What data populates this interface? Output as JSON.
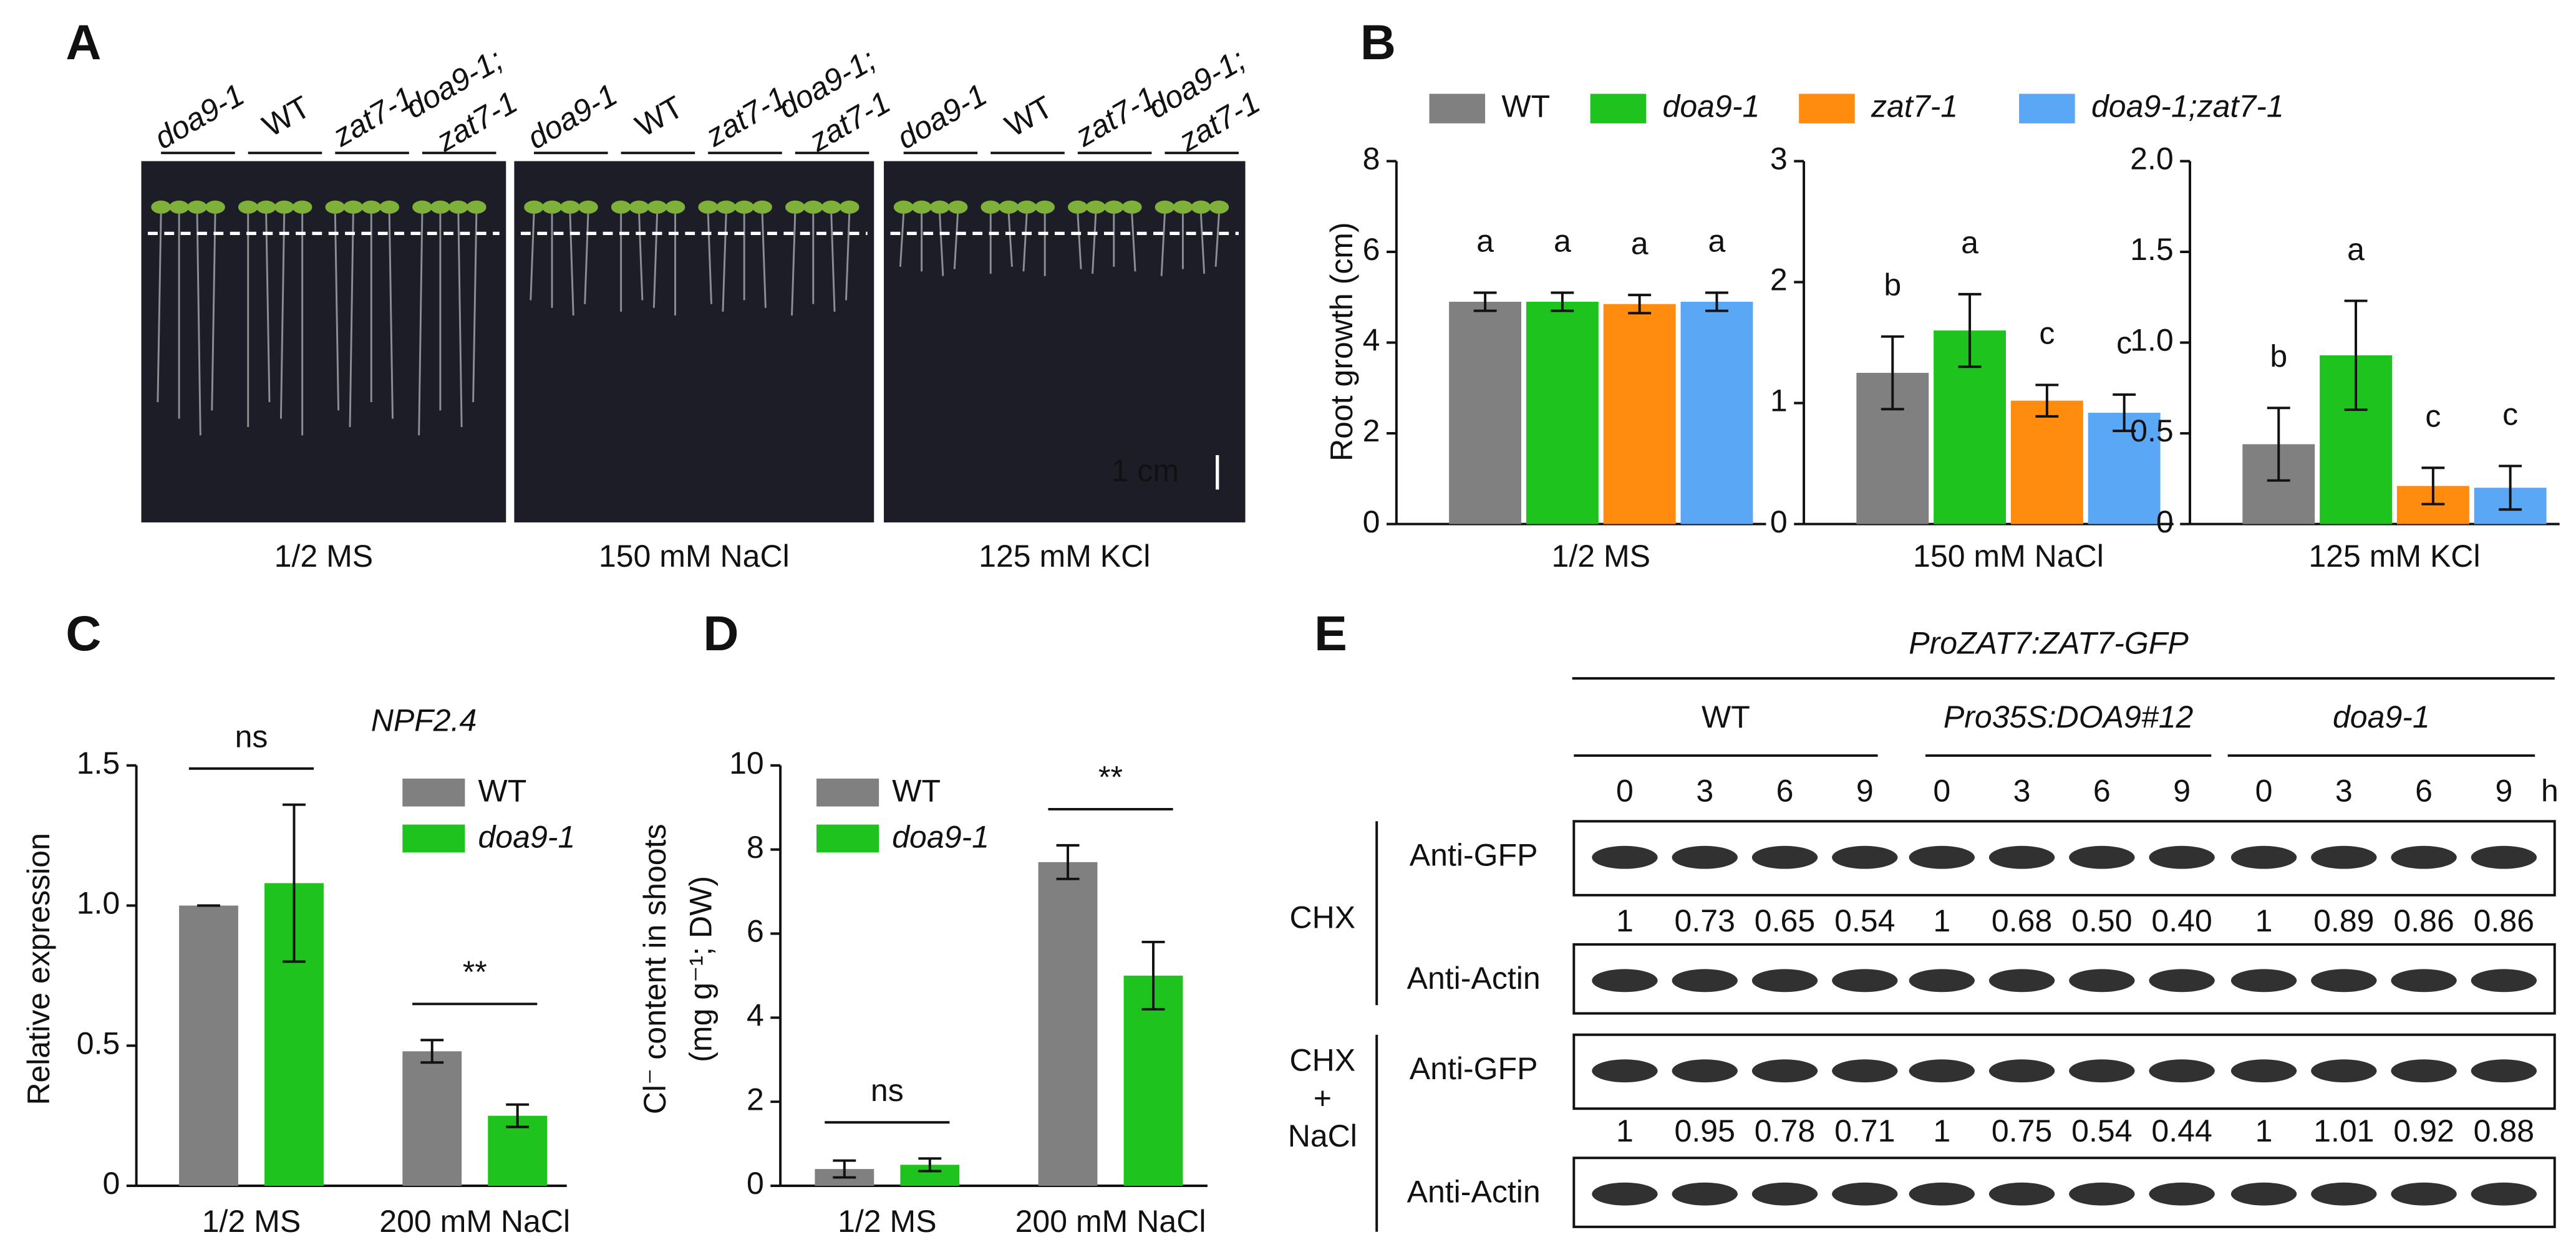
{
  "panel_a": {
    "label": "A",
    "genotypes": [
      [
        "doa9-1"
      ],
      [
        "WT"
      ],
      [
        "zat7-1"
      ],
      [
        "doa9-1;",
        "zat7-1"
      ]
    ],
    "genotype_italic": [
      true,
      false,
      true,
      true
    ],
    "conditions": [
      "1/2 MS",
      "150 mM NaCl",
      "125 mM KCl"
    ],
    "scale_bar": "1 cm"
  },
  "chart_data": [
    {
      "type": "bar",
      "panel": "B",
      "ylabel": "Root growth (cm)",
      "categories": [
        "1/2 MS",
        "150 mM NaCl",
        "125 mM KCl"
      ],
      "facets": [
        {
          "ylim": [
            0,
            8
          ],
          "yticks": [
            0,
            2,
            4,
            6,
            8
          ]
        },
        {
          "ylim": [
            0,
            3
          ],
          "yticks": [
            0,
            1,
            2,
            3
          ]
        },
        {
          "ylim": [
            0,
            2
          ],
          "yticks": [
            0,
            0.5,
            {
              "value": 1,
              "label": "1.0"
            },
            1.5,
            {
              "value": 2,
              "label": "2.0"
            }
          ]
        }
      ],
      "series": [
        {
          "name": "WT",
          "italic": false,
          "color": "#808080",
          "values": [
            4.9,
            1.25,
            0.44
          ],
          "errors": [
            0.2,
            0.3,
            0.2
          ],
          "letters": [
            "a",
            "b",
            "b"
          ]
        },
        {
          "name": "doa9-1",
          "italic": true,
          "color": "#1ec31e",
          "values": [
            4.9,
            1.6,
            0.93
          ],
          "errors": [
            0.2,
            0.3,
            0.3
          ],
          "letters": [
            "a",
            "a",
            "a"
          ]
        },
        {
          "name": "zat7-1",
          "italic": true,
          "color": "#ff8c0f",
          "values": [
            4.85,
            1.02,
            0.21
          ],
          "errors": [
            0.2,
            0.13,
            0.1
          ],
          "letters": [
            "a",
            "c",
            "c"
          ]
        },
        {
          "name": "doa9-1;zat7-1",
          "italic": true,
          "color": "#5aa8f5",
          "values": [
            4.9,
            0.92,
            0.2
          ],
          "errors": [
            0.2,
            0.15,
            0.12
          ],
          "letters": [
            "a",
            "c",
            "c"
          ]
        }
      ]
    },
    {
      "type": "bar",
      "panel": "C",
      "title": "NPF2.4",
      "ylabel": [
        "Relative expression"
      ],
      "categories": [
        "1/2 MS",
        "200 mM NaCl"
      ],
      "significance": [
        "ns",
        "**"
      ],
      "ylim": [
        0,
        1.5
      ],
      "yticks": [
        0,
        0.5,
        {
          "value": 1,
          "label": "1.0"
        },
        1.5
      ],
      "legend": "upper right",
      "series": [
        {
          "name": "WT",
          "italic": false,
          "color": "#808080",
          "values": [
            1.0,
            0.48
          ],
          "errors": [
            0,
            0.04
          ]
        },
        {
          "name": "doa9-1",
          "italic": true,
          "color": "#1ec31e",
          "values": [
            1.08,
            0.25
          ],
          "errors": [
            0.28,
            0.04
          ]
        }
      ]
    },
    {
      "type": "bar",
      "panel": "D",
      "ylabel": [
        "Cl⁻ content in shoots",
        "(mg g⁻¹; DW)"
      ],
      "categories": [
        "1/2 MS",
        "200 mM NaCl"
      ],
      "significance": [
        "ns",
        "**"
      ],
      "ylim": [
        0,
        10
      ],
      "yticks": [
        0,
        2,
        4,
        6,
        8,
        10
      ],
      "legend": "upper left",
      "series": [
        {
          "name": "WT",
          "italic": false,
          "color": "#808080",
          "values": [
            0.4,
            7.7
          ],
          "errors": [
            0.2,
            0.4
          ]
        },
        {
          "name": "doa9-1",
          "italic": true,
          "color": "#1ec31e",
          "values": [
            0.5,
            5.0
          ],
          "errors": [
            0.15,
            0.8
          ]
        }
      ]
    }
  ],
  "panel_e": {
    "label": "E",
    "construct": "ProZAT7:ZAT7-GFP",
    "lines": [
      "WT",
      "Pro35S:DOA9#12",
      "doa9-1"
    ],
    "lines_italic": [
      false,
      true,
      true
    ],
    "times": [
      "0",
      "3",
      "6",
      "9"
    ],
    "time_unit": "h",
    "treatments": [
      {
        "name": [
          "CHX"
        ],
        "rows": [
          "Anti-GFP",
          "Anti-Actin"
        ],
        "ratios": [
          "1",
          "0.73",
          "0.65",
          "0.54",
          "1",
          "0.68",
          "0.50",
          "0.40",
          "1",
          "0.89",
          "0.86",
          "0.86"
        ]
      },
      {
        "name": [
          "CHX",
          "+",
          "NaCl"
        ],
        "rows": [
          "Anti-GFP",
          "Anti-Actin"
        ],
        "ratios": [
          "1",
          "0.95",
          "0.78",
          "0.71",
          "1",
          "0.75",
          "0.54",
          "0.44",
          "1",
          "1.01",
          "0.92",
          "0.88"
        ]
      }
    ]
  }
}
